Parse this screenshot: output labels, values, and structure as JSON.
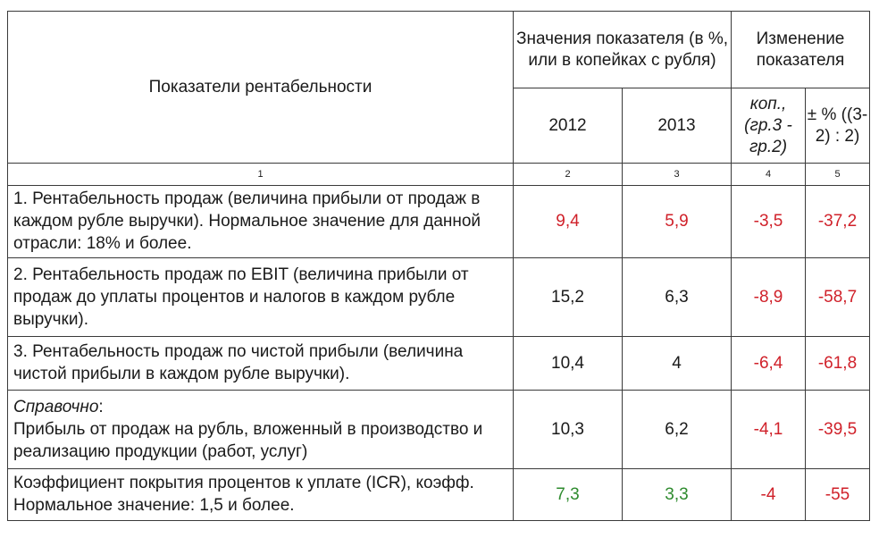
{
  "header": {
    "col1": "Показатели рентабельности",
    "values_group": "Значения показателя (в %, или в копейках с рубля)",
    "change_group": "Изменение показателя",
    "year1": "2012",
    "year2": "2013",
    "kop_label": "коп., (гр.3 - гр.2)",
    "pct_label": "± % ((3-2) : 2)"
  },
  "col_numbers": [
    "1",
    "2",
    "3",
    "4",
    "5"
  ],
  "rows": [
    {
      "label": "1. Рентабельность продаж (величина прибыли от продаж в каждом рубле выручки). Нормальное значение для данной отрасли: 18% и более.",
      "v2012": "9,4",
      "v2013": "5,9",
      "kop": "-3,5",
      "pct": "-37,2",
      "c2012": "red",
      "c2013": "red"
    },
    {
      "label": "2. Рентабельность продаж по EBIT (величина прибыли от продаж до уплаты процентов и налогов в каждом рубле выручки).",
      "v2012": "15,2",
      "v2013": "6,3",
      "kop": "-8,9",
      "pct": "-58,7",
      "c2012": "black",
      "c2013": "black"
    },
    {
      "label": "3. Рентабельность продаж по чистой прибыли (величина чистой прибыли в каждом рубле выручки).",
      "v2012": "10,4",
      "v2013": "4",
      "kop": "-6,4",
      "pct": "-61,8",
      "c2012": "black",
      "c2013": "black"
    },
    {
      "prefix": "Справочно",
      "label": "Прибыль от продаж на рубль, вложенный в производство и реализацию продукции (работ, услуг)",
      "v2012": "10,3",
      "v2013": "6,2",
      "kop": "-4,1",
      "pct": "-39,5",
      "c2012": "black",
      "c2013": "black"
    },
    {
      "label": "Коэффициент покрытия процентов к уплате (ICR), коэфф. Нормальное значение: 1,5 и более.",
      "v2012": "7,3",
      "v2013": "3,3",
      "kop": "-4",
      "pct": "-55",
      "c2012": "green",
      "c2013": "green"
    }
  ],
  "colors": {
    "red": "#d0212a",
    "green": "#2e8b2e",
    "black": "#1a1a1a"
  }
}
